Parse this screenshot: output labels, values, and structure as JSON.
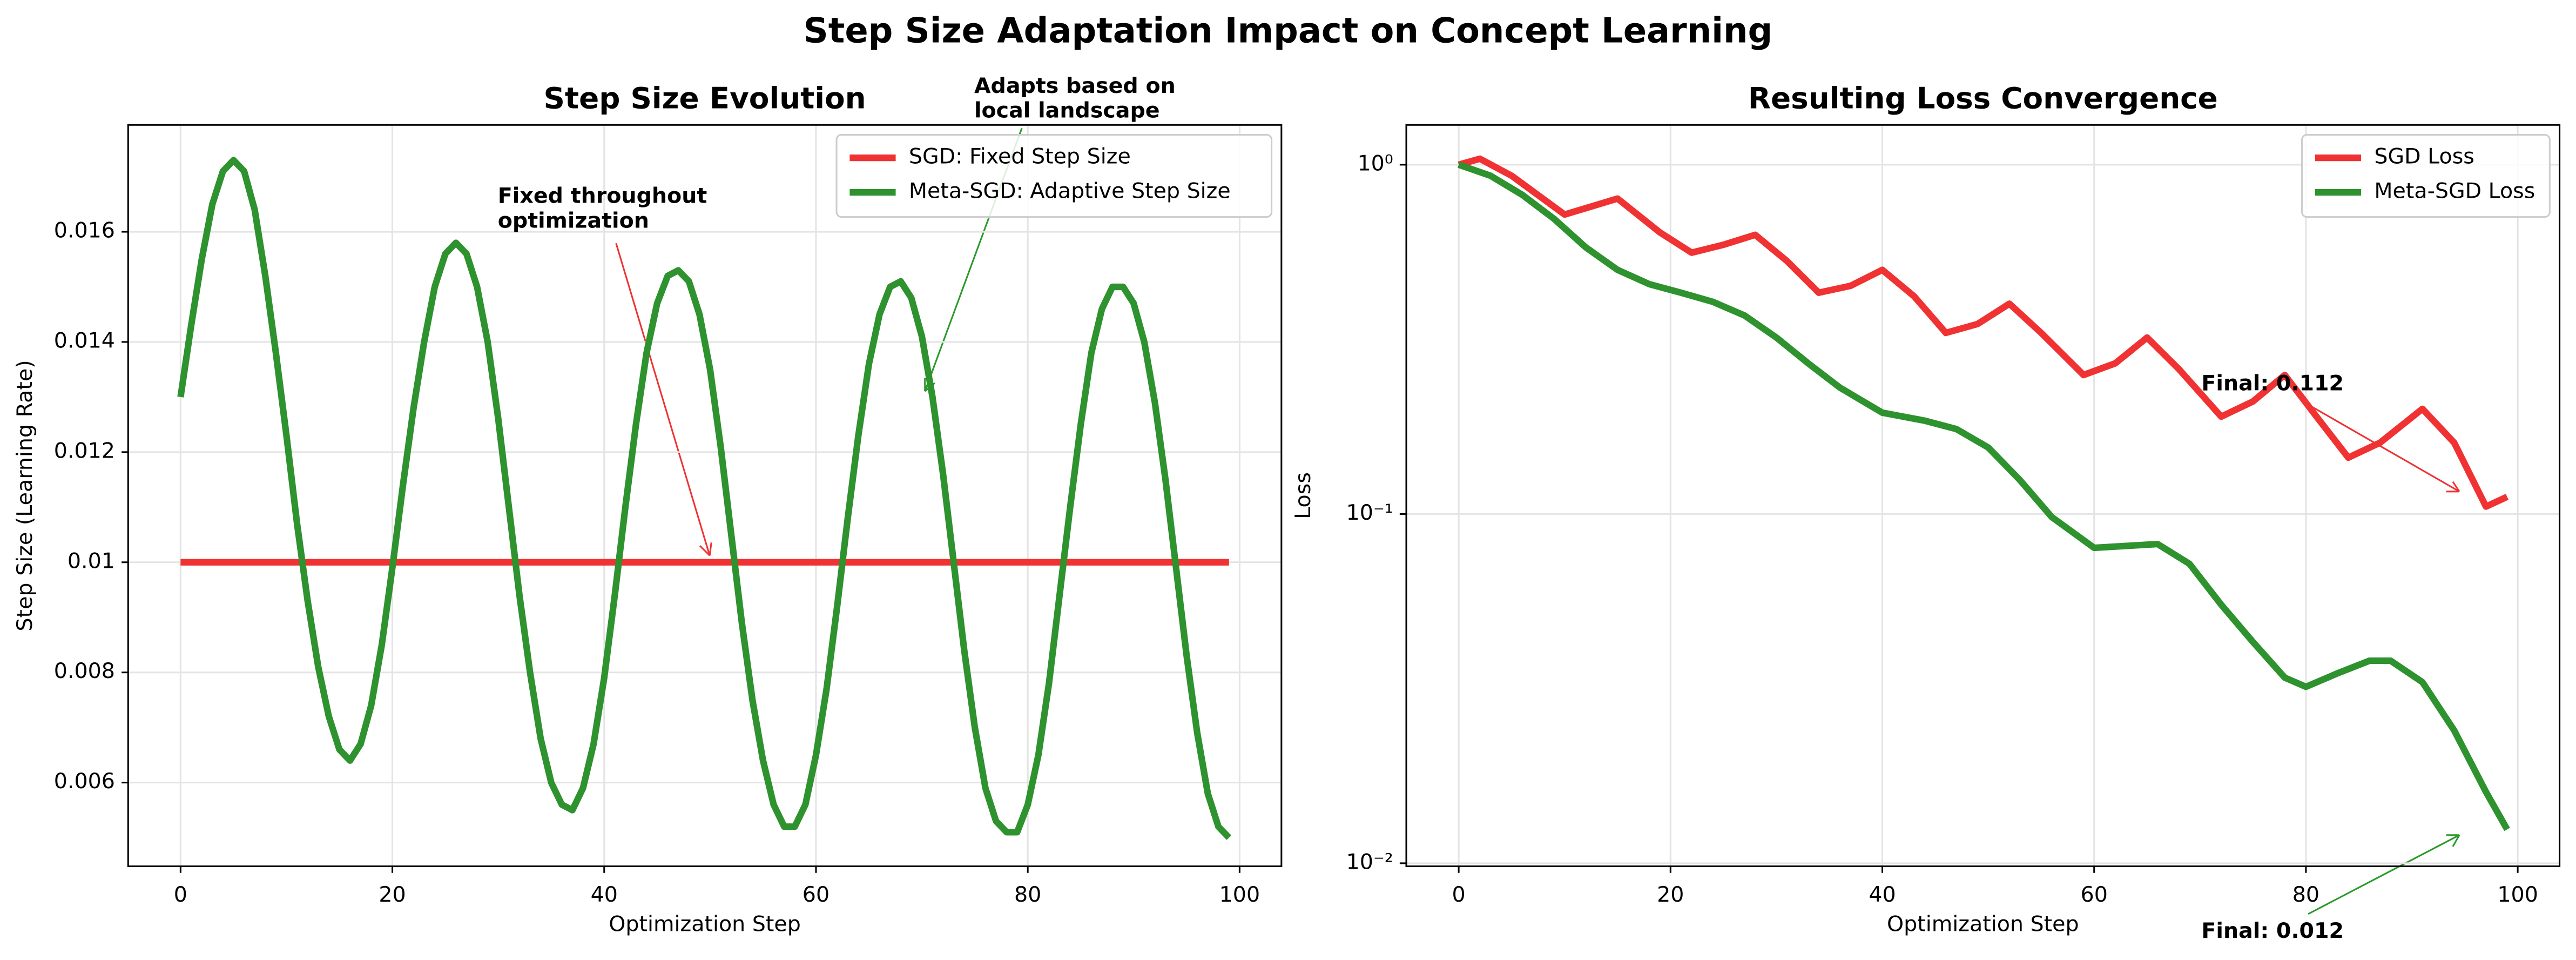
{
  "title": "Step Size Adaptation Impact on Concept Learning",
  "chart_data": [
    {
      "type": "line",
      "title": "Step Size Evolution",
      "xlabel": "Optimization Step",
      "ylabel": "Step Size (Learning Rate)",
      "xlim": [
        -4.95,
        103.95
      ],
      "xticks": [
        0,
        20,
        40,
        60,
        80,
        100
      ],
      "ylim": [
        0.00448,
        0.01794
      ],
      "yticks": [
        0.006,
        0.008,
        0.01,
        0.012,
        0.014,
        0.016
      ],
      "grid": true,
      "legend": "upper right",
      "series": [
        {
          "name": "SGD: Fixed Step Size",
          "color": "#f03232",
          "x": [
            0,
            99
          ],
          "values": [
            0.01,
            0.01
          ]
        },
        {
          "name": "Meta-SGD: Adaptive Step Size",
          "color": "#2e922e",
          "x": [
            0,
            1,
            2,
            3,
            4,
            5,
            6,
            7,
            8,
            9,
            10,
            11,
            12,
            13,
            14,
            15,
            16,
            17,
            18,
            19,
            20,
            21,
            22,
            23,
            24,
            25,
            26,
            27,
            28,
            29,
            30,
            31,
            32,
            33,
            34,
            35,
            36,
            37,
            38,
            39,
            40,
            41,
            42,
            43,
            44,
            45,
            46,
            47,
            48,
            49,
            50,
            51,
            52,
            53,
            54,
            55,
            56,
            57,
            58,
            59,
            60,
            61,
            62,
            63,
            64,
            65,
            66,
            67,
            68,
            69,
            70,
            71,
            72,
            73,
            74,
            75,
            76,
            77,
            78,
            79,
            80,
            81,
            82,
            83,
            84,
            85,
            86,
            87,
            88,
            89,
            90,
            91,
            92,
            93,
            94,
            95,
            96,
            97,
            98,
            99
          ],
          "values": [
            0.013,
            0.0143,
            0.0155,
            0.0165,
            0.0171,
            0.0173,
            0.0171,
            0.0164,
            0.0152,
            0.0138,
            0.0123,
            0.0107,
            0.0093,
            0.0081,
            0.0072,
            0.0066,
            0.0064,
            0.0067,
            0.0074,
            0.0085,
            0.0099,
            0.0114,
            0.0128,
            0.014,
            0.015,
            0.0156,
            0.0158,
            0.0156,
            0.015,
            0.014,
            0.0126,
            0.011,
            0.0094,
            0.008,
            0.0068,
            0.006,
            0.0056,
            0.0055,
            0.0059,
            0.0067,
            0.0079,
            0.0094,
            0.011,
            0.0125,
            0.0138,
            0.0147,
            0.0152,
            0.0153,
            0.0151,
            0.0145,
            0.0135,
            0.0121,
            0.0105,
            0.0089,
            0.0075,
            0.0064,
            0.0056,
            0.0052,
            0.0052,
            0.0056,
            0.0065,
            0.0077,
            0.0092,
            0.0108,
            0.0123,
            0.0136,
            0.0145,
            0.015,
            0.0151,
            0.0148,
            0.0141,
            0.013,
            0.0116,
            0.01,
            0.0084,
            0.007,
            0.0059,
            0.0053,
            0.0051,
            0.0051,
            0.0056,
            0.0065,
            0.0078,
            0.0094,
            0.011,
            0.0125,
            0.0138,
            0.0146,
            0.015,
            0.015,
            0.0147,
            0.014,
            0.0129,
            0.0115,
            0.0099,
            0.0083,
            0.0069,
            0.0058,
            0.0052,
            0.005
          ]
        }
      ],
      "annotations": [
        {
          "lines": [
            "Fixed throughout",
            "optimization"
          ],
          "color": "#ee0000"
        },
        {
          "lines": [
            "Adapts based on",
            "local landscape"
          ],
          "color": "#008000"
        }
      ]
    },
    {
      "type": "line",
      "title": "Resulting Loss Convergence",
      "xlabel": "Optimization Step",
      "ylabel": "Loss",
      "xlim": [
        -4.95,
        103.95
      ],
      "xticks": [
        0,
        20,
        40,
        60,
        80,
        100
      ],
      "ylim": [
        0.0098,
        1.3
      ],
      "log_y": true,
      "yticks": [
        {
          "value": 1,
          "label": "10⁰"
        },
        {
          "value": 0.1,
          "label": "10⁻¹"
        },
        {
          "value": 0.01,
          "label": "10⁻²"
        }
      ],
      "grid": true,
      "legend": "upper right",
      "series": [
        {
          "name": "SGD Loss",
          "color": "#f03232",
          "x": [
            0,
            2,
            5,
            10,
            15,
            19,
            22,
            25,
            28,
            31,
            34,
            37,
            40,
            43,
            46,
            49,
            52,
            55,
            59,
            62,
            65,
            68,
            72,
            75,
            78,
            81,
            84,
            87,
            91,
            94,
            97,
            99
          ],
          "values": [
            1.0,
            1.04,
            0.93,
            0.72,
            0.8,
            0.64,
            0.56,
            0.59,
            0.63,
            0.53,
            0.43,
            0.45,
            0.5,
            0.42,
            0.33,
            0.35,
            0.4,
            0.33,
            0.25,
            0.27,
            0.32,
            0.26,
            0.19,
            0.21,
            0.25,
            0.19,
            0.145,
            0.16,
            0.2,
            0.16,
            0.105,
            0.112
          ]
        },
        {
          "name": "Meta-SGD Loss",
          "color": "#2e922e",
          "x": [
            0,
            3,
            6,
            9,
            12,
            15,
            18,
            21,
            24,
            27,
            30,
            33,
            36,
            40,
            44,
            47,
            50,
            53,
            56,
            60,
            63,
            66,
            69,
            72,
            75,
            78,
            80,
            83,
            86,
            88,
            91,
            94,
            97,
            99
          ],
          "values": [
            1.0,
            0.93,
            0.82,
            0.7,
            0.58,
            0.5,
            0.455,
            0.43,
            0.405,
            0.37,
            0.32,
            0.27,
            0.23,
            0.195,
            0.185,
            0.175,
            0.155,
            0.125,
            0.098,
            0.08,
            0.081,
            0.082,
            0.072,
            0.055,
            0.043,
            0.034,
            0.032,
            0.035,
            0.038,
            0.038,
            0.033,
            0.024,
            0.016,
            0.0125
          ]
        }
      ],
      "annotations": [
        {
          "lines": [
            "Final: 0.112"
          ],
          "color": "#ee0000"
        },
        {
          "lines": [
            "Final: 0.012"
          ],
          "color": "#008000"
        }
      ]
    }
  ]
}
